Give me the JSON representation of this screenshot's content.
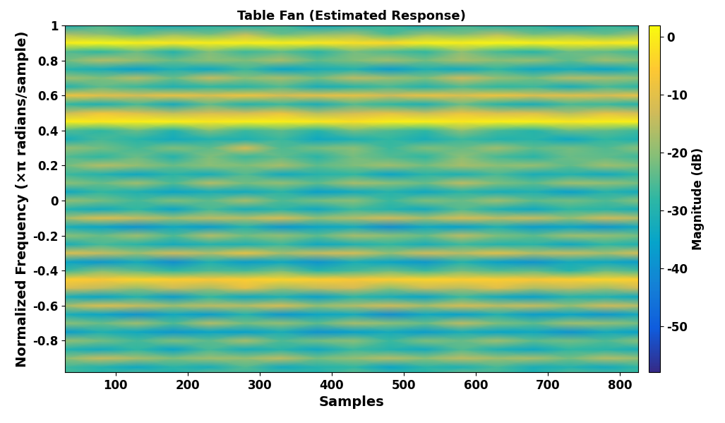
{
  "chart_data": {
    "type": "heatmap",
    "title": "Table Fan (Estimated Response)",
    "x_label": "Samples",
    "y_label": "Normalized Frequency (×π radians/sample)",
    "colorbar_label": "Magnitude (dB)",
    "xlim": [
      30,
      825
    ],
    "ylim": [
      -0.98,
      1
    ],
    "xticks": [
      100,
      200,
      300,
      400,
      500,
      600,
      700,
      800
    ],
    "yticks": [
      -0.8,
      -0.6,
      -0.4,
      -0.2,
      0,
      0.2,
      0.4,
      0.6,
      0.8,
      1
    ],
    "colorbar_range": [
      -58,
      2
    ],
    "colorbar_ticks": [
      -50,
      -40,
      -30,
      -20,
      -10,
      0
    ],
    "x": [
      30,
      80,
      130,
      180,
      230,
      280,
      330,
      380,
      430,
      480,
      530,
      580,
      630,
      680,
      730,
      780,
      830
    ],
    "y": [
      -1.0,
      -0.95,
      -0.9,
      -0.85,
      -0.8,
      -0.75,
      -0.7,
      -0.65,
      -0.6,
      -0.55,
      -0.5,
      -0.45,
      -0.4,
      -0.35,
      -0.3,
      -0.25,
      -0.2,
      -0.15,
      -0.1,
      -0.05,
      0.0,
      0.05,
      0.1,
      0.15,
      0.2,
      0.25,
      0.3,
      0.35,
      0.4,
      0.45,
      0.5,
      0.55,
      0.6,
      0.65,
      0.7,
      0.75,
      0.8,
      0.85,
      0.9,
      0.95,
      1.0
    ],
    "values": [
      [
        -25,
        -28,
        -23,
        -30,
        -21,
        -27,
        -24,
        -29,
        -22,
        -25,
        -28,
        -20,
        -26,
        -29,
        -23,
        -24,
        -27
      ],
      [
        -27,
        -30,
        -34,
        -29,
        -32,
        -25,
        -33,
        -30,
        -28,
        -35,
        -29,
        -31,
        -26,
        -32,
        -30,
        -33,
        -28
      ],
      [
        -20,
        -14,
        -17,
        -21,
        -18,
        -19,
        -15,
        -22,
        -19,
        -16,
        -20,
        -15,
        -18,
        -17,
        -22,
        -16,
        -19
      ],
      [
        -30,
        -33,
        -28,
        -35,
        -26,
        -32,
        -29,
        -34,
        -27,
        -30,
        -33,
        -25,
        -31,
        -34,
        -28,
        -29,
        -32
      ],
      [
        -19,
        -22,
        -26,
        -21,
        -24,
        -17,
        -25,
        -22,
        -20,
        -27,
        -21,
        -23,
        -18,
        -24,
        -22,
        -25,
        -20
      ],
      [
        -37,
        -31,
        -34,
        -38,
        -35,
        -36,
        -32,
        -39,
        -36,
        -33,
        -37,
        -32,
        -35,
        -34,
        -39,
        -33,
        -36
      ],
      [
        -20,
        -23,
        -18,
        -25,
        -16,
        -22,
        -19,
        -24,
        -17,
        -20,
        -23,
        -15,
        -21,
        -24,
        -18,
        -19,
        -22
      ],
      [
        -32,
        -35,
        -39,
        -34,
        -37,
        -30,
        -38,
        -35,
        -33,
        -40,
        -34,
        -36,
        -31,
        -37,
        -35,
        -38,
        -33
      ],
      [
        -17,
        -11,
        -14,
        -18,
        -15,
        -16,
        -12,
        -19,
        -16,
        -13,
        -17,
        -12,
        -15,
        -14,
        -19,
        -13,
        -16
      ],
      [
        -32,
        -35,
        -30,
        -37,
        -28,
        -34,
        -31,
        -36,
        -29,
        -32,
        -35,
        -27,
        -33,
        -36,
        -30,
        -31,
        -34
      ],
      [
        -12,
        -15,
        -19,
        -14,
        -17,
        -10,
        -18,
        -15,
        -13,
        -20,
        -14,
        -16,
        -11,
        -17,
        -15,
        -18,
        -13
      ],
      [
        -5,
        -6,
        -4,
        -5,
        -6,
        -5,
        -4,
        -5,
        -6,
        -5,
        -4,
        -5,
        -5,
        -6,
        -5,
        -4,
        -5
      ],
      [
        -27,
        -21,
        -24,
        -28,
        -25,
        -26,
        -22,
        -29,
        -26,
        -23,
        -27,
        -22,
        -25,
        -24,
        -29,
        -23,
        -26
      ],
      [
        -35,
        -38,
        -33,
        -40,
        -31,
        -37,
        -34,
        -39,
        -32,
        -35,
        -38,
        -30,
        -36,
        -39,
        -33,
        -34,
        -37
      ],
      [
        -11,
        -14,
        -18,
        -13,
        -16,
        -9,
        -17,
        -14,
        -12,
        -19,
        -13,
        -15,
        -10,
        -16,
        -14,
        -17,
        -12
      ],
      [
        -32,
        -26,
        -29,
        -33,
        -30,
        -31,
        -27,
        -34,
        -31,
        -28,
        -32,
        -27,
        -30,
        -29,
        -34,
        -28,
        -31
      ],
      [
        -20,
        -23,
        -18,
        -25,
        -16,
        -22,
        -19,
        -24,
        -17,
        -20,
        -23,
        -15,
        -21,
        -24,
        -18,
        -19,
        -22
      ],
      [
        -32,
        -35,
        -39,
        -34,
        -37,
        -30,
        -38,
        -35,
        -33,
        -40,
        -34,
        -36,
        -31,
        -37,
        -35,
        -38,
        -33
      ],
      [
        -17,
        -11,
        -14,
        -18,
        -15,
        -16,
        -12,
        -19,
        -16,
        -13,
        -17,
        -12,
        -15,
        -14,
        -19,
        -13,
        -16
      ],
      [
        -30,
        -33,
        -28,
        -35,
        -26,
        -32,
        -29,
        -34,
        -27,
        -30,
        -33,
        -25,
        -31,
        -34,
        -28,
        -29,
        -32
      ],
      [
        -19,
        -22,
        -26,
        -21,
        -24,
        -17,
        -25,
        -22,
        -20,
        -27,
        -21,
        -23,
        -18,
        -24,
        -22,
        -25,
        -20
      ],
      [
        -34,
        -28,
        -31,
        -35,
        -32,
        -33,
        -29,
        -36,
        -33,
        -30,
        -34,
        -29,
        -32,
        -31,
        -36,
        -30,
        -33
      ],
      [
        -20,
        -23,
        -18,
        -25,
        -16,
        -22,
        -19,
        -24,
        -17,
        -20,
        -23,
        -15,
        -21,
        -24,
        -18,
        -19,
        -22
      ],
      [
        -27,
        -30,
        -34,
        -29,
        -32,
        -25,
        -33,
        -30,
        -28,
        -35,
        -29,
        -31,
        -26,
        -32,
        -30,
        -33,
        -28
      ],
      [
        -22,
        -16,
        -19,
        -23,
        -20,
        -21,
        -17,
        -24,
        -21,
        -18,
        -22,
        -17,
        -20,
        -19,
        -24,
        -18,
        -21
      ],
      [
        -25,
        -28,
        -23,
        -30,
        -21,
        -27,
        -24,
        -29,
        -22,
        -25,
        -28,
        -20,
        -26,
        -29,
        -23,
        -24,
        -27
      ],
      [
        -19,
        -22,
        -26,
        -21,
        -24,
        -12,
        -25,
        -22,
        -20,
        -27,
        -21,
        -23,
        -18,
        -24,
        -22,
        -25,
        -20
      ],
      [
        -32,
        -26,
        -29,
        -33,
        -30,
        -31,
        -27,
        -34,
        -31,
        -28,
        -32,
        -27,
        -30,
        -29,
        -34,
        -28,
        -31
      ],
      [
        -25,
        -28,
        -23,
        -30,
        -21,
        -27,
        -24,
        -29,
        -22,
        -25,
        -28,
        -20,
        -26,
        -29,
        -23,
        -24,
        -27
      ],
      [
        0,
        -1,
        0,
        0,
        -1,
        0,
        0,
        -1,
        -2,
        0,
        0,
        -1,
        0,
        0,
        -1,
        0,
        0
      ],
      [
        -14,
        -8,
        -11,
        -15,
        -12,
        -13,
        -9,
        -16,
        -13,
        -10,
        -14,
        -9,
        -12,
        -11,
        -16,
        -10,
        -13
      ],
      [
        -28,
        -31,
        -26,
        -33,
        -24,
        -30,
        -27,
        -32,
        -25,
        -28,
        -31,
        -23,
        -29,
        -32,
        -26,
        -27,
        -30
      ],
      [
        -8,
        -10,
        -12,
        -9,
        -11,
        -8,
        -12,
        -10,
        -9,
        -13,
        -9,
        -11,
        -8,
        -11,
        -10,
        -12,
        -9
      ],
      [
        -30,
        -24,
        -27,
        -31,
        -28,
        -29,
        -25,
        -32,
        -29,
        -26,
        -30,
        -25,
        -28,
        -27,
        -32,
        -26,
        -29
      ],
      [
        -18,
        -21,
        -16,
        -23,
        -14,
        -20,
        -17,
        -22,
        -15,
        -18,
        -21,
        -13,
        -19,
        -22,
        -16,
        -17,
        -20
      ],
      [
        -29,
        -32,
        -36,
        -31,
        -34,
        -27,
        -35,
        -32,
        -30,
        -37,
        -31,
        -33,
        -28,
        -34,
        -32,
        -35,
        -30
      ],
      [
        -22,
        -16,
        -19,
        -23,
        -20,
        -21,
        -17,
        -24,
        -21,
        -18,
        -22,
        -17,
        -20,
        -19,
        -24,
        -18,
        -21
      ],
      [
        -25,
        -28,
        -23,
        -30,
        -21,
        -27,
        -24,
        -29,
        -22,
        -25,
        -28,
        -20,
        -26,
        -29,
        -23,
        -24,
        -27
      ],
      [
        0,
        1,
        0,
        -1,
        0,
        0,
        0,
        -1,
        -2,
        -3,
        0,
        0,
        1,
        0,
        0,
        -1,
        0
      ],
      [
        -17,
        -20,
        -24,
        -19,
        -22,
        -15,
        -23,
        -20,
        -18,
        -25,
        -19,
        -21,
        -16,
        -22,
        -20,
        -23,
        -18
      ],
      [
        -32,
        -26,
        -29,
        -33,
        -30,
        -31,
        -27,
        -34,
        -31,
        -28,
        -32,
        -27,
        -30,
        -29,
        -34,
        -28,
        -31
      ]
    ]
  }
}
